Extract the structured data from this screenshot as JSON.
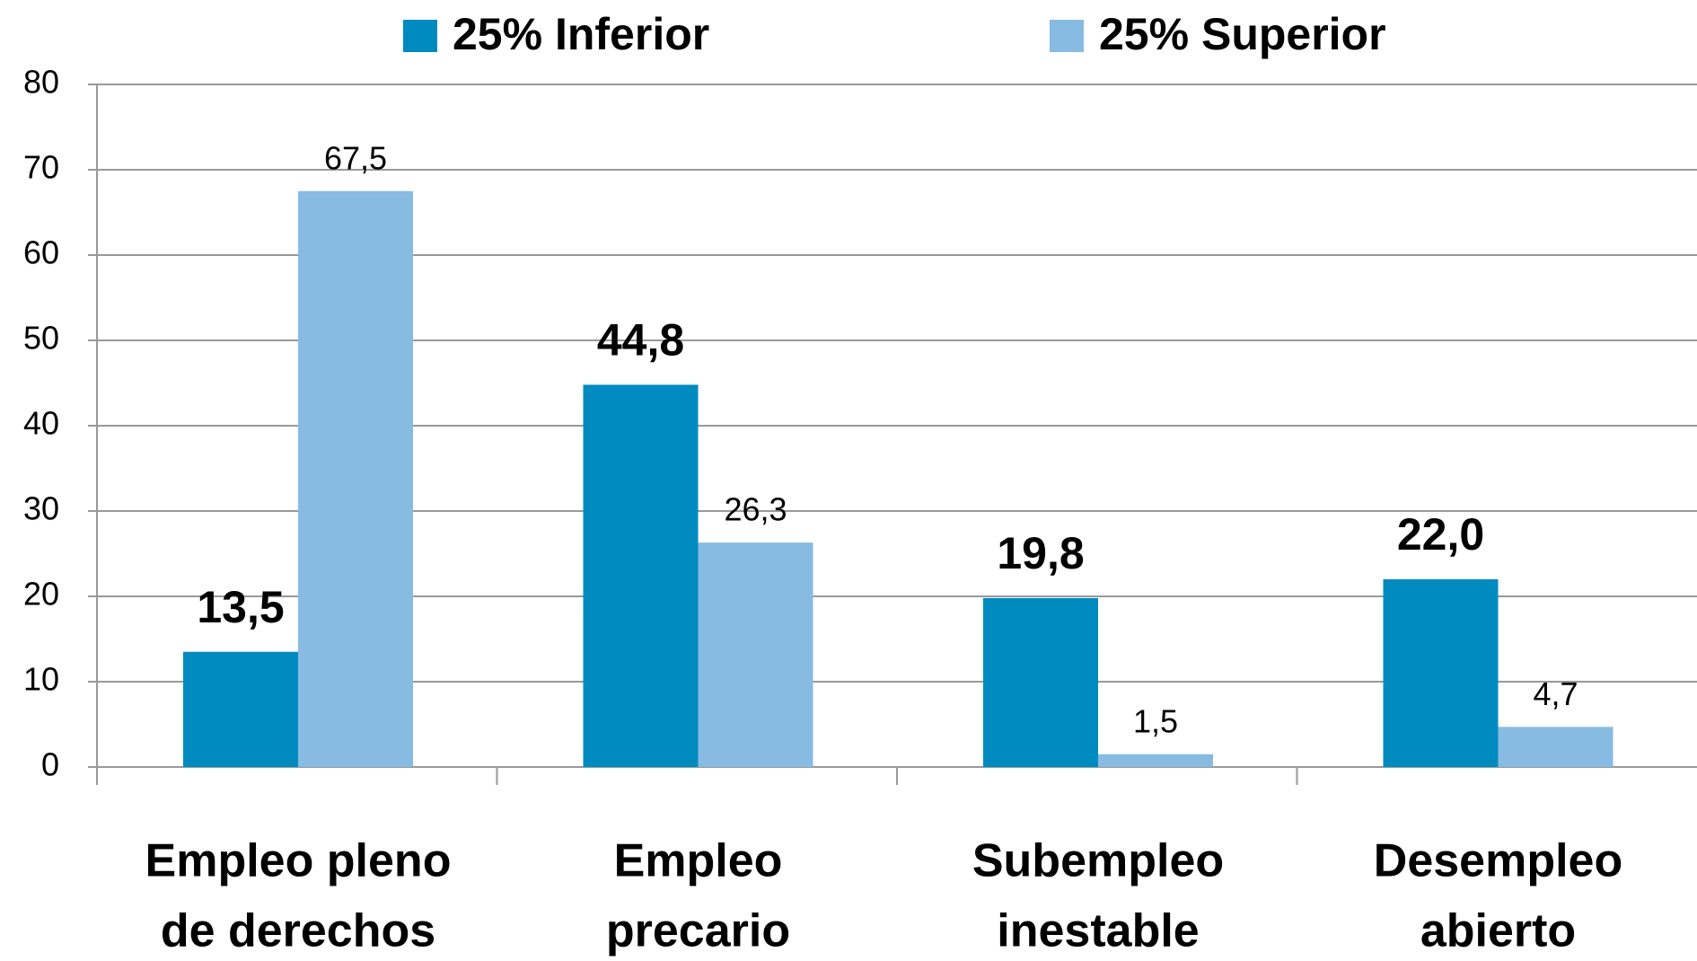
{
  "chart_data": {
    "type": "bar",
    "categories": [
      [
        "Empleo pleno",
        "de derechos"
      ],
      [
        "Empleo",
        "precario"
      ],
      [
        "Subempleo",
        "inestable"
      ],
      [
        "Desempleo",
        "abierto"
      ]
    ],
    "series": [
      {
        "name": "25% Inferior",
        "color": "#008bc0",
        "values": [
          13.5,
          44.8,
          19.8,
          22.0
        ],
        "value_labels": [
          "13,5",
          "44,8",
          "19,8",
          "22,0"
        ]
      },
      {
        "name": "25% Superior",
        "color": "#88bbe2",
        "values": [
          67.5,
          26.3,
          1.5,
          4.7
        ],
        "value_labels": [
          "67,5",
          "26,3",
          "1,5",
          "4,7"
        ]
      }
    ],
    "ylim": [
      0,
      80
    ],
    "yticks": [
      0,
      10,
      20,
      30,
      40,
      50,
      60,
      70,
      80
    ],
    "grid": true,
    "legend": "top"
  }
}
